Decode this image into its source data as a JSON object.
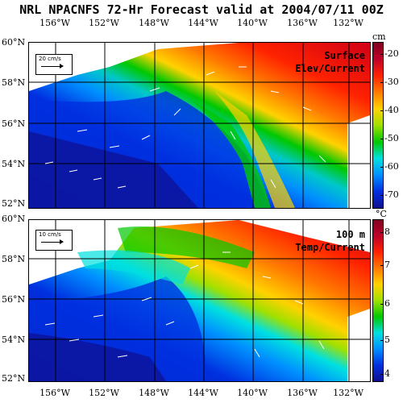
{
  "title": "NRL NPACNFS 72-Hr Forecast valid at 2004/07/11 00Z",
  "longitudes": [
    "156°W",
    "152°W",
    "148°W",
    "144°W",
    "140°W",
    "136°W",
    "132°W"
  ],
  "panel_top": {
    "label_line1": "Surface",
    "label_line2": "Elev/Current",
    "ref_vector": "20 cm/s",
    "latitudes": [
      "60°N",
      "58°N",
      "56°N",
      "54°N",
      "52°N"
    ],
    "colorbar": {
      "unit": "cm",
      "ticks": [
        "-20",
        "-30",
        "-40",
        "-50",
        "-60",
        "-70"
      ],
      "colors": [
        "#800020",
        "#c0002a",
        "#ff2200",
        "#ff7a00",
        "#ffd200",
        "#a0e000",
        "#00c800",
        "#00e0e0",
        "#0090ff",
        "#0030e0",
        "#101090"
      ]
    }
  },
  "panel_bottom": {
    "label_line1": "100 m",
    "label_line2": "Temp/Current",
    "ref_vector": "10 cm/s",
    "latitudes": [
      "60°N",
      "58°N",
      "56°N",
      "54°N",
      "52°N"
    ],
    "colorbar": {
      "unit": "°C",
      "ticks": [
        "8",
        "7",
        "6",
        "5",
        "4"
      ],
      "colors": [
        "#800020",
        "#c0002a",
        "#ff2200",
        "#ff7a00",
        "#ffd200",
        "#a0e000",
        "#00c800",
        "#00e0e0",
        "#0090ff",
        "#0030e0",
        "#101090"
      ]
    }
  }
}
